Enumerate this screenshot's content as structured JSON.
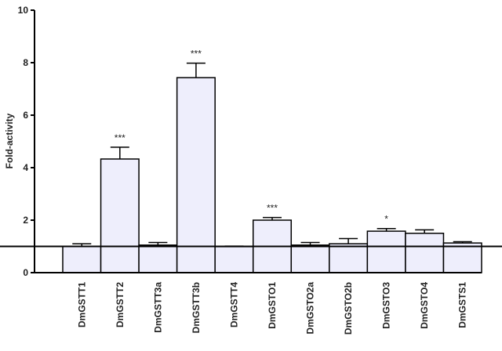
{
  "chart_data": {
    "type": "bar",
    "y_label": "Fold-activity",
    "categories": [
      "DmGSTT1",
      "DmGSTT2",
      "DmGSTT3a",
      "DmGSTT3b",
      "DmGSTT4",
      "DmGSTO1",
      "DmGSTO2a",
      "DmGSTO2b",
      "DmGSTO3",
      "DmGSTO4",
      "DmGSTS1"
    ],
    "values": [
      1.0,
      4.33,
      1.05,
      7.43,
      0.99,
      2.0,
      1.05,
      1.1,
      1.58,
      1.5,
      1.13
    ],
    "errors": [
      0.1,
      0.45,
      0.1,
      0.55,
      0.02,
      0.1,
      0.1,
      0.2,
      0.1,
      0.13,
      0.05
    ],
    "annotations": [
      null,
      "***",
      null,
      "***",
      null,
      "***",
      null,
      null,
      "*",
      null,
      null
    ],
    "reference_line": 1,
    "color": "#eeeefc",
    "ylim": [
      0,
      10
    ],
    "yticks": [
      0,
      2,
      4,
      6,
      8,
      10
    ],
    "grid": false
  }
}
